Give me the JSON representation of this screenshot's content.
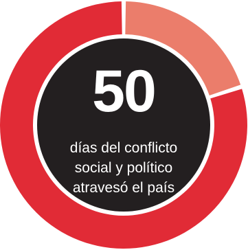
{
  "chart_data": {
    "type": "pie",
    "style": "donut",
    "slices": [
      {
        "label": "",
        "value": 50,
        "color": "#E12B36"
      },
      {
        "label": "",
        "value": 12.5,
        "color": "#EB7D6B"
      }
    ],
    "center_value": "50",
    "center_caption": [
      "días del conflicto",
      "social y político",
      "atravesó el país"
    ],
    "center_color": "#231F20"
  }
}
